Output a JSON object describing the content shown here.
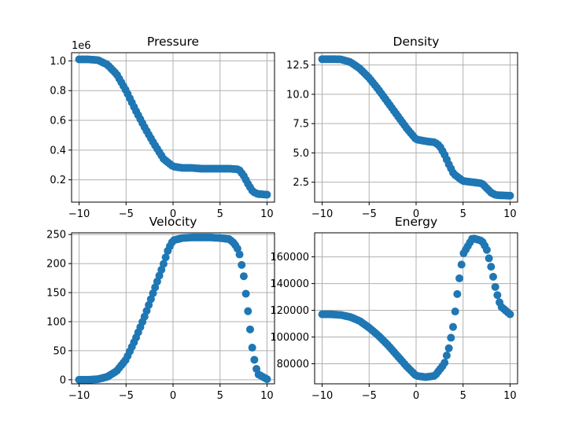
{
  "chart_data": [
    {
      "type": "scatter",
      "title": "Pressure",
      "offset_label": "1e6",
      "xlim": [
        -10.8,
        10.8
      ],
      "ylim": [
        0.05,
        1.055
      ],
      "xticks": [
        -10,
        -5,
        0,
        5,
        10
      ],
      "xtick_labels": [
        "−10",
        "−5",
        "0",
        "5",
        "10"
      ],
      "yticks": [
        0.2,
        0.4,
        0.6,
        0.8,
        1.0
      ],
      "ytick_labels": [
        "0.2",
        "0.4",
        "0.6",
        "0.8",
        "1.0"
      ],
      "grid": true,
      "color": "#1f77b4",
      "points": [
        [
          -10,
          1.01
        ],
        [
          -9.0,
          1.01
        ],
        [
          -8.0,
          1.005
        ],
        [
          -7.0,
          0.975
        ],
        [
          -6.0,
          0.91
        ],
        [
          -5.0,
          0.8
        ],
        [
          -4.0,
          0.67
        ],
        [
          -3.0,
          0.55
        ],
        [
          -2.0,
          0.44
        ],
        [
          -1.0,
          0.34
        ],
        [
          0.0,
          0.29
        ],
        [
          1.0,
          0.28
        ],
        [
          2.0,
          0.28
        ],
        [
          3.0,
          0.275
        ],
        [
          4.0,
          0.275
        ],
        [
          5.0,
          0.275
        ],
        [
          6.0,
          0.275
        ],
        [
          7.0,
          0.27
        ],
        [
          7.5,
          0.23
        ],
        [
          8.0,
          0.17
        ],
        [
          8.5,
          0.12
        ],
        [
          9.0,
          0.105
        ],
        [
          10,
          0.1
        ]
      ]
    },
    {
      "type": "scatter",
      "title": "Density",
      "xlim": [
        -10.8,
        10.8
      ],
      "ylim": [
        0.8,
        13.55
      ],
      "xticks": [
        -10,
        -5,
        0,
        5,
        10
      ],
      "xtick_labels": [
        "−10",
        "−5",
        "0",
        "5",
        "10"
      ],
      "yticks": [
        2.5,
        5.0,
        7.5,
        10.0,
        12.5
      ],
      "ytick_labels": [
        "2.5",
        "5.0",
        "7.5",
        "10.0",
        "12.5"
      ],
      "grid": true,
      "color": "#1f77b4",
      "points": [
        [
          -10,
          13.0
        ],
        [
          -9.0,
          13.0
        ],
        [
          -8.0,
          12.98
        ],
        [
          -7.0,
          12.75
        ],
        [
          -6.0,
          12.2
        ],
        [
          -5.0,
          11.4
        ],
        [
          -4.0,
          10.4
        ],
        [
          -3.0,
          9.3
        ],
        [
          -2.0,
          8.2
        ],
        [
          -1.0,
          7.1
        ],
        [
          0.0,
          6.15
        ],
        [
          1.0,
          6.0
        ],
        [
          2.0,
          5.9
        ],
        [
          2.5,
          5.6
        ],
        [
          3.0,
          4.9
        ],
        [
          3.5,
          4.0
        ],
        [
          4.0,
          3.2
        ],
        [
          5.0,
          2.6
        ],
        [
          6.0,
          2.5
        ],
        [
          7.0,
          2.4
        ],
        [
          7.5,
          2.0
        ],
        [
          8.0,
          1.6
        ],
        [
          8.5,
          1.4
        ],
        [
          10,
          1.35
        ]
      ]
    },
    {
      "type": "scatter",
      "title": "Velocity",
      "xlim": [
        -10.8,
        10.8
      ],
      "ylim": [
        -7,
        253
      ],
      "xticks": [
        -10,
        -5,
        0,
        5,
        10
      ],
      "xtick_labels": [
        "−10",
        "−5",
        "0",
        "5",
        "10"
      ],
      "yticks": [
        0,
        50,
        100,
        150,
        200,
        250
      ],
      "ytick_labels": [
        "0",
        "50",
        "100",
        "150",
        "200",
        "250"
      ],
      "grid": true,
      "color": "#1f77b4",
      "points": [
        [
          -10,
          0
        ],
        [
          -9.0,
          0
        ],
        [
          -8.0,
          1
        ],
        [
          -7.0,
          5
        ],
        [
          -6.0,
          15
        ],
        [
          -5.0,
          35
        ],
        [
          -4.0,
          70
        ],
        [
          -3.0,
          110
        ],
        [
          -2.0,
          155
        ],
        [
          -1.0,
          200
        ],
        [
          -0.5,
          225
        ],
        [
          0.0,
          240
        ],
        [
          1.0,
          244
        ],
        [
          2.0,
          245
        ],
        [
          3.0,
          245
        ],
        [
          4.0,
          245
        ],
        [
          5.0,
          244
        ],
        [
          6.0,
          242
        ],
        [
          6.5,
          235
        ],
        [
          7.0,
          222
        ],
        [
          7.5,
          182
        ],
        [
          8.0,
          115
        ],
        [
          8.5,
          45
        ],
        [
          9.0,
          10
        ],
        [
          10,
          1
        ]
      ]
    },
    {
      "type": "scatter",
      "title": "Energy",
      "xlim": [
        -10.8,
        10.8
      ],
      "ylim": [
        65000,
        178000
      ],
      "xticks": [
        -10,
        -5,
        0,
        5,
        10
      ],
      "xtick_labels": [
        "−10",
        "−5",
        "0",
        "5",
        "10"
      ],
      "yticks": [
        80000,
        100000,
        120000,
        140000,
        160000
      ],
      "ytick_labels": [
        "80000",
        "100000",
        "120000",
        "140000",
        "160000"
      ],
      "grid": true,
      "color": "#1f77b4",
      "points": [
        [
          -10,
          117000
        ],
        [
          -9.0,
          117000
        ],
        [
          -8.0,
          116500
        ],
        [
          -7.0,
          115000
        ],
        [
          -6.0,
          112000
        ],
        [
          -5.0,
          107000
        ],
        [
          -4.0,
          101000
        ],
        [
          -3.0,
          94000
        ],
        [
          -2.0,
          86000
        ],
        [
          -1.0,
          78000
        ],
        [
          0.0,
          71000
        ],
        [
          1.0,
          70000
        ],
        [
          2.0,
          71000
        ],
        [
          3.0,
          80000
        ],
        [
          3.5,
          92000
        ],
        [
          4.0,
          110000
        ],
        [
          4.5,
          139000
        ],
        [
          5.0,
          162000
        ],
        [
          6.0,
          174000
        ],
        [
          7.0,
          172000
        ],
        [
          7.5,
          166000
        ],
        [
          8.0,
          152000
        ],
        [
          8.5,
          135000
        ],
        [
          9.0,
          123000
        ],
        [
          10,
          117000
        ]
      ]
    }
  ]
}
